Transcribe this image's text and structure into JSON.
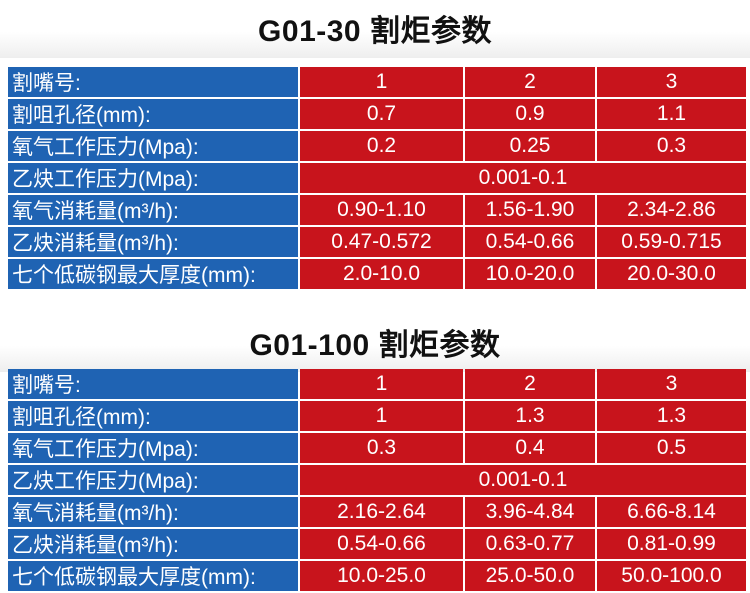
{
  "tables": [
    {
      "title": "G01-30 割炬参数",
      "rows": [
        {
          "label": "割嘴号:",
          "values": [
            "1",
            "2",
            "3"
          ]
        },
        {
          "label": "割咀孔径(mm):",
          "values": [
            "0.7",
            "0.9",
            "1.1"
          ]
        },
        {
          "label": "氧气工作压力(Mpa):",
          "values": [
            "0.2",
            "0.25",
            "0.3"
          ]
        },
        {
          "label": "乙炔工作压力(Mpa):",
          "values": [
            "0.001-0.1"
          ]
        },
        {
          "label": "氧气消耗量(m³/h):",
          "values": [
            "0.90-1.10",
            "1.56-1.90",
            "2.34-2.86"
          ]
        },
        {
          "label": "乙炔消耗量(m³/h):",
          "values": [
            "0.47-0.572",
            "0.54-0.66",
            "0.59-0.715"
          ]
        },
        {
          "label": "七个低碳钢最大厚度(mm):",
          "values": [
            "2.0-10.0",
            "10.0-20.0",
            "20.0-30.0"
          ]
        }
      ]
    },
    {
      "title": "G01-100 割炬参数",
      "rows": [
        {
          "label": "割嘴号:",
          "values": [
            "1",
            "2",
            "3"
          ]
        },
        {
          "label": "割咀孔径(mm):",
          "values": [
            "1",
            "1.3",
            "1.3"
          ]
        },
        {
          "label": "氧气工作压力(Mpa):",
          "values": [
            "0.3",
            "0.4",
            "0.5"
          ]
        },
        {
          "label": "乙炔工作压力(Mpa):",
          "values": [
            "0.001-0.1"
          ]
        },
        {
          "label": "氧气消耗量(m³/h):",
          "values": [
            "2.16-2.64",
            "3.96-4.84",
            "6.66-8.14"
          ]
        },
        {
          "label": "乙炔消耗量(m³/h):",
          "values": [
            "0.54-0.66",
            "0.63-0.77",
            "0.81-0.99"
          ]
        },
        {
          "label": "七个低碳钢最大厚度(mm):",
          "values": [
            "10.0-25.0",
            "25.0-50.0",
            "50.0-100.0"
          ]
        }
      ]
    }
  ],
  "colors": {
    "label_bg": "#1f63b3",
    "value_bg": "#c8141c",
    "text": "#ffffff"
  }
}
